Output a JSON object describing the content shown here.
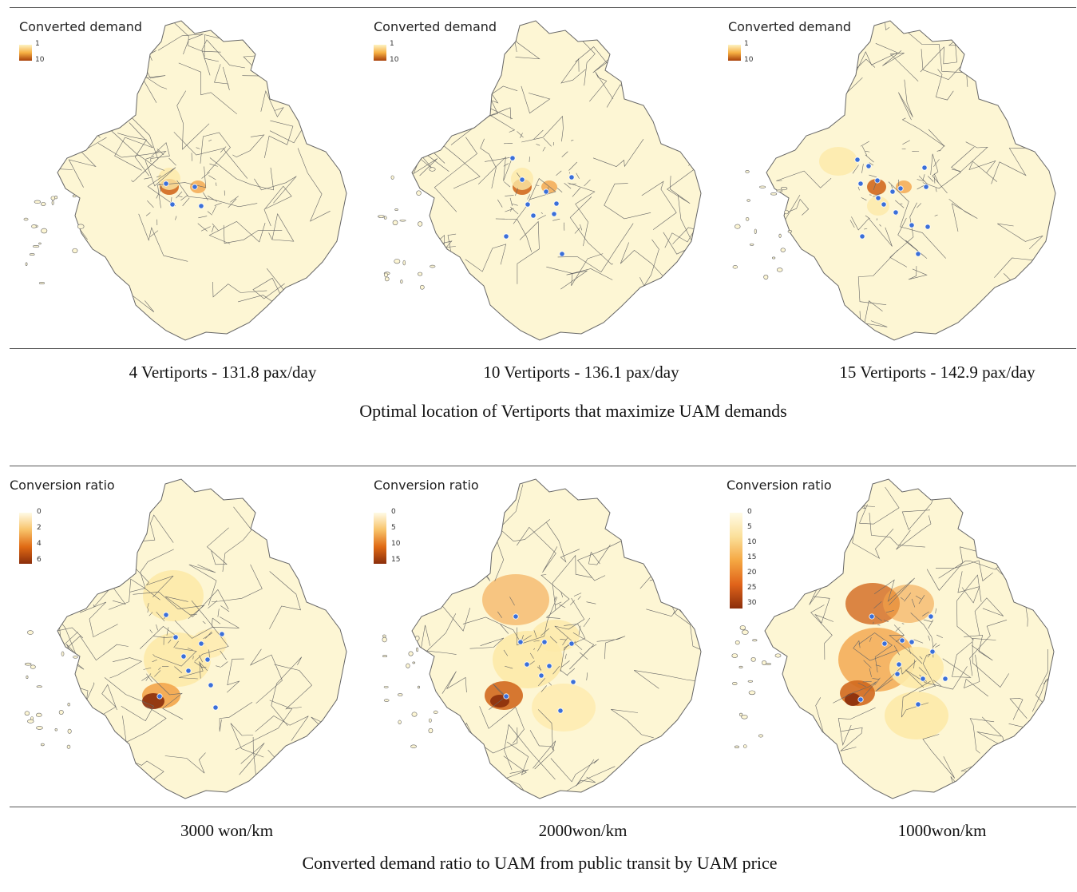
{
  "top_section": {
    "title": "Optimal location of Vertiports that maximize UAM demands",
    "panels": [
      {
        "legend_title": "Converted demand",
        "legend_ticks": [
          "1",
          "10"
        ],
        "caption": "4 Vertiports - 131.8 pax/day"
      },
      {
        "legend_title": "Converted demand",
        "legend_ticks": [
          "1",
          "10"
        ],
        "caption": "10 Vertiports - 136.1 pax/day"
      },
      {
        "legend_title": "Converted demand",
        "legend_ticks": [
          "1",
          "10"
        ],
        "caption": "15 Vertiports - 142.9 pax/day"
      }
    ]
  },
  "bottom_section": {
    "title": "Converted demand ratio to UAM from public transit by UAM price",
    "panels": [
      {
        "legend_title": "Conversion ratio",
        "legend_ticks": [
          "0",
          "2",
          "4",
          "6"
        ],
        "caption": "3000 won/km"
      },
      {
        "legend_title": "Conversion ratio",
        "legend_ticks": [
          "0",
          "5",
          "10",
          "15"
        ],
        "caption": "2000won/km"
      },
      {
        "legend_title": "Conversion ratio",
        "legend_ticks": [
          "0",
          "5",
          "10",
          "15",
          "20",
          "25",
          "30"
        ],
        "caption": "1000won/km"
      }
    ]
  },
  "colors": {
    "base_fill": "#fdf6d4",
    "boundary": "#666666",
    "low": "#fdeaa8",
    "mid": "#f3a54a",
    "high": "#d2691e",
    "max": "#8b2e0b",
    "vertiport": "#3b6fd8"
  }
}
